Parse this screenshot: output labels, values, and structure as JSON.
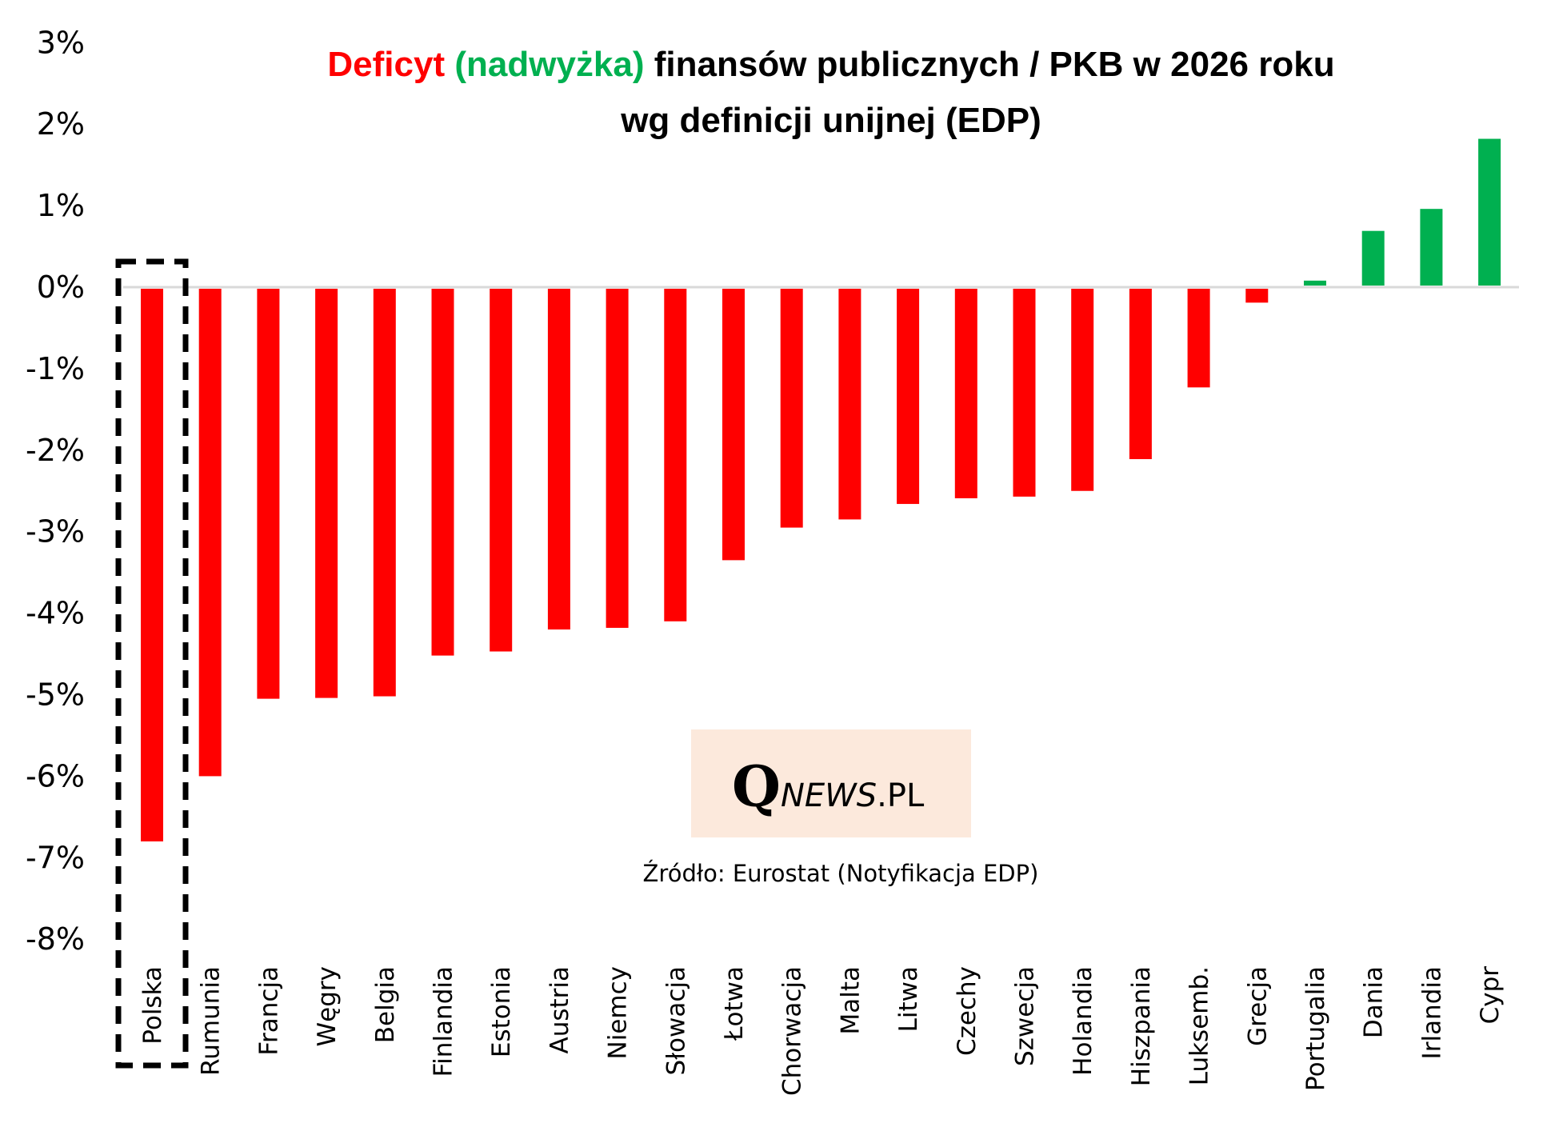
{
  "chart_data": {
    "type": "bar",
    "title": {
      "line1": [
        {
          "text": "Deficyt",
          "color": "#ff0000"
        },
        {
          "text": " (nadwyżka)",
          "color": "#00b050"
        },
        {
          "text": " finansów publicznych / PKB w 2026 roku",
          "color": "#000000"
        }
      ],
      "line2": "wg definicji unijnej (EDP)"
    },
    "xlabel": "",
    "ylabel": "",
    "ylim": [
      -8,
      3
    ],
    "yticks": [
      3,
      2,
      1,
      0,
      -1,
      -2,
      -3,
      -4,
      -5,
      -6,
      -7,
      -8
    ],
    "ytick_labels": [
      "3%",
      "2%",
      "1%",
      "0%",
      "-1%",
      "-2%",
      "-3%",
      "-4%",
      "-5%",
      "-6%",
      "-7%",
      "-8%"
    ],
    "grid": false,
    "zero_line_color": "#d9d9d9",
    "categories": [
      "Polska",
      "Rumunia",
      "Francja",
      "Węgry",
      "Belgia",
      "Finlandia",
      "Estonia",
      "Austria",
      "Niemcy",
      "Słowacja",
      "Łotwa",
      "Chorwacja",
      "Malta",
      "Litwa",
      "Czechy",
      "Szwecja",
      "Holandia",
      "Hiszpania",
      "Luksemb.",
      "Grecja",
      "Portugalia",
      "Dania",
      "Irlandia",
      "Cypr"
    ],
    "values": [
      -6.8,
      -6.0,
      -5.05,
      -5.04,
      -5.02,
      -4.52,
      -4.47,
      -4.2,
      -4.18,
      -4.1,
      -3.35,
      -2.95,
      -2.85,
      -2.66,
      -2.59,
      -2.57,
      -2.5,
      -2.11,
      -1.23,
      -0.19,
      0.08,
      0.69,
      0.96,
      1.82
    ],
    "unit": "% PKB",
    "colors": {
      "negative": "#ff0000",
      "positive": "#00b050"
    },
    "highlight": {
      "category": "Polska",
      "style": "dashed-box",
      "color": "#000000"
    },
    "annotations": {
      "logo": {
        "q": "Q",
        "news": "NEWS",
        "pl": ".PL",
        "background": "#fce9dc"
      },
      "source": "Źródło: Eurostat (Notyfikacja EDP)"
    }
  }
}
